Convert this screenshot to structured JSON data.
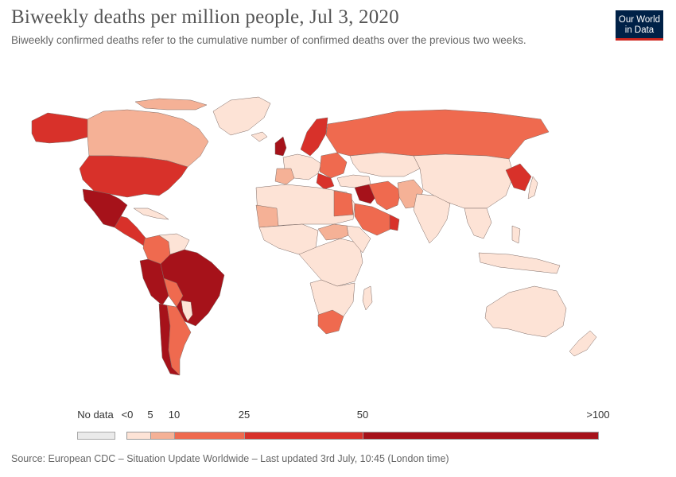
{
  "title": "Biweekly deaths per million people, Jul 3, 2020",
  "subtitle": "Biweekly confirmed deaths refer to the cumulative number of confirmed deaths over the previous two weeks.",
  "logo": {
    "line1": "Our World",
    "line2": "in Data"
  },
  "legend": {
    "no_data_label": "No data",
    "labels": [
      "<0",
      "5",
      "10",
      "25",
      "50",
      ">100"
    ],
    "bins": [
      {
        "label": "<0 to 5",
        "color": "#fde3d6"
      },
      {
        "label": "5 to 10",
        "color": "#f5b196"
      },
      {
        "label": "10 to 25",
        "color": "#ef6a4f"
      },
      {
        "label": "25 to 50",
        "color": "#d8312a"
      },
      {
        "label": "50 to >100",
        "color": "#a6121a"
      }
    ],
    "no_data_color": "#eaeaea"
  },
  "colors": {
    "very_low": "#fde3d6",
    "low": "#f5b196",
    "medium": "#ef6a4f",
    "high": "#d8312a",
    "very_high": "#a6121a",
    "no_data": "#eaeaea",
    "border": "#7d6b66"
  },
  "source": "Source: European CDC – Situation Update Worldwide – Last updated 3rd July, 10:45 (London time)"
}
